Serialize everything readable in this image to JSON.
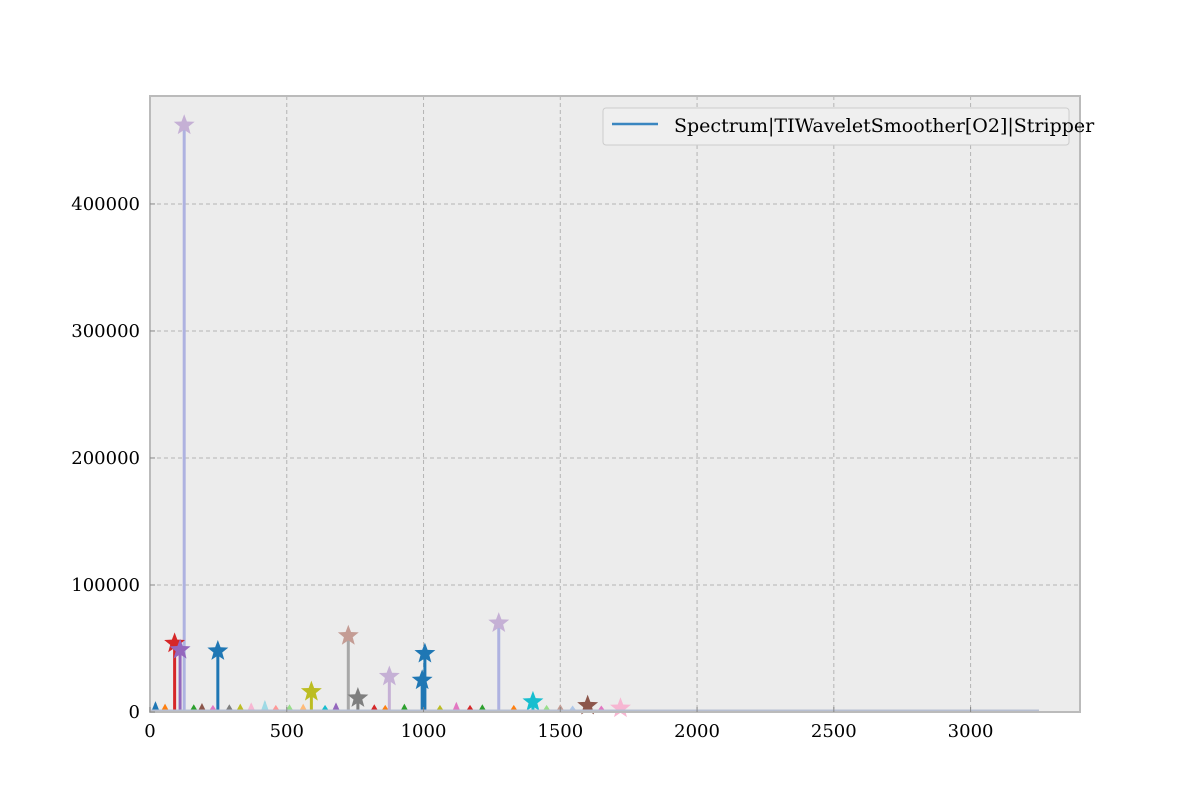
{
  "chart_data": {
    "type": "line",
    "title": "",
    "xlabel": "",
    "ylabel": "",
    "xlim": [
      0,
      3400
    ],
    "ylim": [
      0,
      485000
    ],
    "x_ticks": [
      0,
      500,
      1000,
      1500,
      2000,
      2500,
      3000
    ],
    "y_ticks": [
      0,
      100000,
      200000,
      300000,
      400000
    ],
    "x_tick_labels": [
      "0",
      "500",
      "1000",
      "1500",
      "2000",
      "2500",
      "3000"
    ],
    "y_tick_labels": [
      "0",
      "100000",
      "200000",
      "300000",
      "400000"
    ],
    "grid": true,
    "legend": {
      "placement": "top-right",
      "entries": [
        "Spectrum|TIWaveletSmoother[O2]|Stripper"
      ]
    },
    "series": [
      {
        "name": "Spectrum|TIWaveletSmoother[O2]|Stripper",
        "color": "#3a86c0",
        "baseline": {
          "x_start": 0,
          "x_end": 3250,
          "y": 0
        }
      }
    ],
    "peaks": [
      {
        "x": 125,
        "y": 462000,
        "color": "#aeb2e0",
        "marker": "#c5b0d5",
        "size": "large"
      },
      {
        "x": 90,
        "y": 54000,
        "color": "#d62728",
        "marker": "#d62728",
        "size": "large"
      },
      {
        "x": 110,
        "y": 49000,
        "color": "#9467bd",
        "marker": "#9467bd",
        "size": "large"
      },
      {
        "x": 248,
        "y": 48000,
        "color": "#1f77b4",
        "marker": "#1f77b4",
        "size": "large"
      },
      {
        "x": 590,
        "y": 16000,
        "color": "#bcbd22",
        "marker": "#bcbd22",
        "size": "large"
      },
      {
        "x": 725,
        "y": 60000,
        "color": "#a8a8a8",
        "marker": "#c49c94",
        "size": "large"
      },
      {
        "x": 760,
        "y": 11000,
        "color": "#7f7f7f",
        "marker": "#7f7f7f",
        "size": "large"
      },
      {
        "x": 875,
        "y": 28000,
        "color": "#c5b0d5",
        "marker": "#c5b0d5",
        "size": "large"
      },
      {
        "x": 995,
        "y": 25000,
        "color": "#1f77b4",
        "marker": "#1f77b4",
        "size": "large"
      },
      {
        "x": 1005,
        "y": 46000,
        "color": "#1f77b4",
        "marker": "#1f77b4",
        "size": "large"
      },
      {
        "x": 1275,
        "y": 70000,
        "color": "#aeb2e0",
        "marker": "#c5b0d5",
        "size": "large"
      },
      {
        "x": 1400,
        "y": 8000,
        "color": "#17becf",
        "marker": "#17becf",
        "size": "large"
      },
      {
        "x": 1600,
        "y": 5000,
        "color": "#8c564b",
        "marker": "#8c564b",
        "size": "large"
      },
      {
        "x": 1720,
        "y": 3000,
        "color": "#f7b6d2",
        "marker": "#f7b6d2",
        "size": "large"
      },
      {
        "x": 20,
        "y": 7000,
        "color": "#1f77b4",
        "marker": "#1f77b4",
        "size": "small"
      },
      {
        "x": 55,
        "y": 5000,
        "color": "#ff7f0e",
        "marker": "#ff7f0e",
        "size": "small"
      },
      {
        "x": 160,
        "y": 4500,
        "color": "#2ca02c",
        "marker": "#2ca02c",
        "size": "small"
      },
      {
        "x": 190,
        "y": 5500,
        "color": "#8c564b",
        "marker": "#8c564b",
        "size": "small"
      },
      {
        "x": 230,
        "y": 4000,
        "color": "#e377c2",
        "marker": "#e377c2",
        "size": "small"
      },
      {
        "x": 290,
        "y": 4500,
        "color": "#7f7f7f",
        "marker": "#7f7f7f",
        "size": "small"
      },
      {
        "x": 330,
        "y": 5000,
        "color": "#bcbd22",
        "marker": "#bcbd22",
        "size": "small"
      },
      {
        "x": 370,
        "y": 6000,
        "color": "#f7b6d2",
        "marker": "#f7b6d2",
        "size": "small"
      },
      {
        "x": 420,
        "y": 8000,
        "color": "#9edae5",
        "marker": "#9edae5",
        "size": "small"
      },
      {
        "x": 460,
        "y": 4000,
        "color": "#ff9896",
        "marker": "#ff9896",
        "size": "small"
      },
      {
        "x": 510,
        "y": 4500,
        "color": "#98df8a",
        "marker": "#98df8a",
        "size": "small"
      },
      {
        "x": 560,
        "y": 5000,
        "color": "#ffbb78",
        "marker": "#ffbb78",
        "size": "small"
      },
      {
        "x": 640,
        "y": 4000,
        "color": "#17becf",
        "marker": "#17becf",
        "size": "small"
      },
      {
        "x": 680,
        "y": 6000,
        "color": "#9467bd",
        "marker": "#9467bd",
        "size": "small"
      },
      {
        "x": 820,
        "y": 4500,
        "color": "#d62728",
        "marker": "#d62728",
        "size": "small"
      },
      {
        "x": 860,
        "y": 4000,
        "color": "#ff7f0e",
        "marker": "#ff7f0e",
        "size": "small"
      },
      {
        "x": 930,
        "y": 5000,
        "color": "#2ca02c",
        "marker": "#2ca02c",
        "size": "small"
      },
      {
        "x": 1060,
        "y": 4000,
        "color": "#bcbd22",
        "marker": "#bcbd22",
        "size": "small"
      },
      {
        "x": 1120,
        "y": 6500,
        "color": "#e377c2",
        "marker": "#e377c2",
        "size": "small"
      },
      {
        "x": 1170,
        "y": 4000,
        "color": "#d62728",
        "marker": "#d62728",
        "size": "small"
      },
      {
        "x": 1215,
        "y": 4500,
        "color": "#2ca02c",
        "marker": "#2ca02c",
        "size": "small"
      },
      {
        "x": 1330,
        "y": 4000,
        "color": "#ff7f0e",
        "marker": "#ff7f0e",
        "size": "small"
      },
      {
        "x": 1450,
        "y": 4000,
        "color": "#98df8a",
        "marker": "#98df8a",
        "size": "small"
      },
      {
        "x": 1500,
        "y": 4500,
        "color": "#c49c94",
        "marker": "#c49c94",
        "size": "small"
      },
      {
        "x": 1545,
        "y": 3500,
        "color": "#aec7e8",
        "marker": "#aec7e8",
        "size": "small"
      },
      {
        "x": 1650,
        "y": 3500,
        "color": "#e377c2",
        "marker": "#e377c2",
        "size": "small"
      }
    ],
    "colors": {
      "axes_bg": "#ececec",
      "frame": "#bbbbbb",
      "grid": "#b4b4b4",
      "legend_bg": "#efefef",
      "legend_border": "#cccccc"
    }
  }
}
